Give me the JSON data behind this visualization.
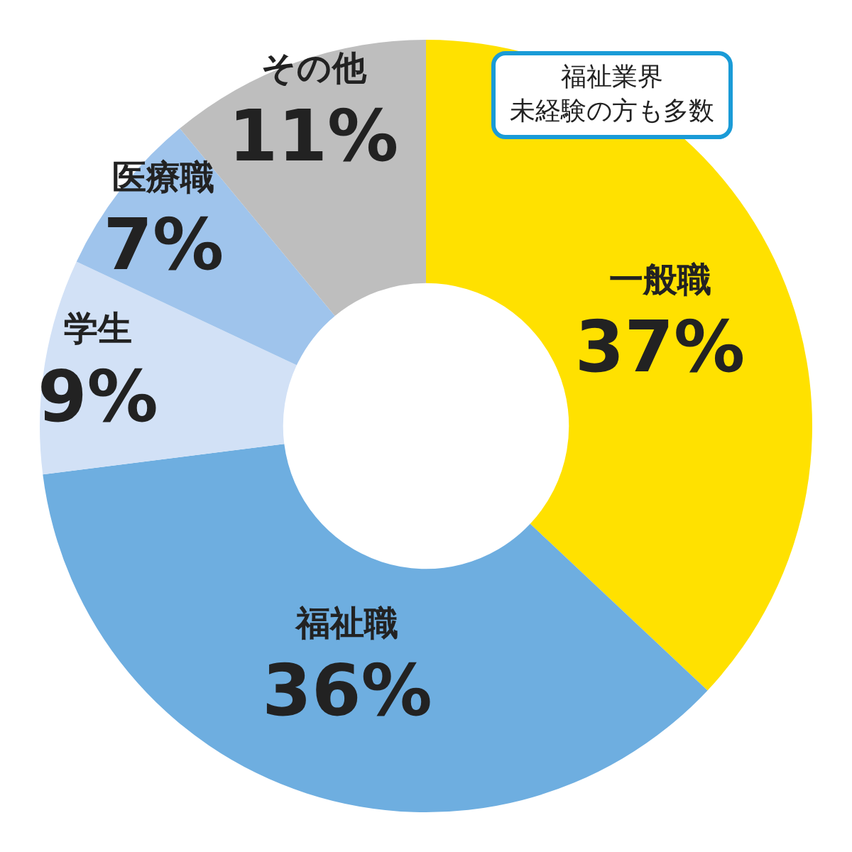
{
  "chart_data": {
    "type": "donut",
    "categories": [
      "一般職",
      "福祉職",
      "学生",
      "医療職",
      "その他"
    ],
    "values": [
      37,
      36,
      9,
      7,
      11
    ],
    "colors": [
      "#ffe100",
      "#6eaee0",
      "#d2e1f6",
      "#9fc4ec",
      "#bebebe"
    ],
    "value_labels": [
      "37%",
      "36%",
      "9%",
      "7%",
      "11%"
    ],
    "annotations": [
      "福祉業界",
      "未経験の方も多数"
    ],
    "legend": false
  }
}
